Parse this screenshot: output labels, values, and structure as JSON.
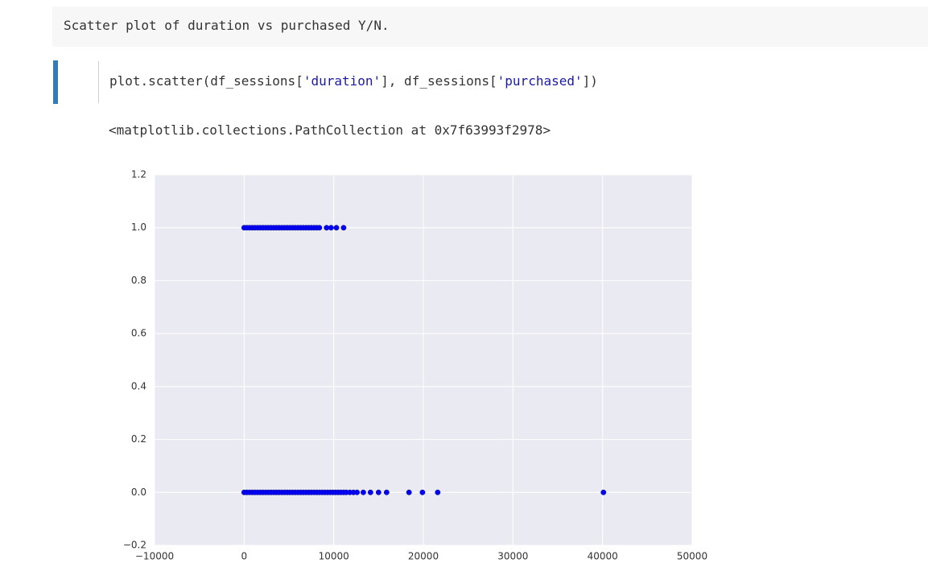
{
  "markdown": {
    "text": "Scatter plot of duration vs purchased Y/N."
  },
  "code": {
    "tokens": [
      "plot.scatter(df_sessions[",
      "'duration'",
      "], df_sessions[",
      "'purchased'",
      "])"
    ]
  },
  "output": {
    "text": "<matplotlib.collections.PathCollection at 0x7f63993f2978>"
  },
  "chart_data": {
    "type": "scatter",
    "color": "#0000ff",
    "grid": true,
    "x": [
      0,
      300,
      600,
      900,
      1200,
      1500,
      1800,
      2100,
      2400,
      2700,
      3000,
      3300,
      3600,
      3900,
      4200,
      4500,
      4800,
      5100,
      5400,
      5700,
      6000,
      6300,
      6600,
      6900,
      7200,
      7500,
      7800,
      8100,
      8400,
      9200,
      9700,
      10300,
      11100,
      0,
      300,
      600,
      900,
      1200,
      1500,
      1800,
      2100,
      2400,
      2700,
      3000,
      3300,
      3600,
      3900,
      4200,
      4500,
      4800,
      5100,
      5400,
      5700,
      6000,
      6300,
      6600,
      6900,
      7200,
      7500,
      7800,
      8100,
      8400,
      8700,
      9000,
      9300,
      9600,
      9900,
      10200,
      10500,
      10800,
      11100,
      11400,
      11800,
      12200,
      12600,
      13300,
      14100,
      15000,
      15900,
      18400,
      19900,
      21600,
      40100
    ],
    "y": [
      1,
      1,
      1,
      1,
      1,
      1,
      1,
      1,
      1,
      1,
      1,
      1,
      1,
      1,
      1,
      1,
      1,
      1,
      1,
      1,
      1,
      1,
      1,
      1,
      1,
      1,
      1,
      1,
      1,
      1,
      1,
      1,
      1,
      0,
      0,
      0,
      0,
      0,
      0,
      0,
      0,
      0,
      0,
      0,
      0,
      0,
      0,
      0,
      0,
      0,
      0,
      0,
      0,
      0,
      0,
      0,
      0,
      0,
      0,
      0,
      0,
      0,
      0,
      0,
      0,
      0,
      0,
      0,
      0,
      0,
      0,
      0,
      0,
      0,
      0,
      0,
      0,
      0,
      0,
      0,
      0,
      0,
      0
    ],
    "xlim": [
      -10000,
      50000
    ],
    "xticks": [
      {
        "value": -10000,
        "label": "−10000"
      },
      0,
      10000,
      20000,
      30000,
      40000,
      50000
    ],
    "ylim": [
      -0.2,
      1.2
    ],
    "yticks": [
      {
        "value": -0.2,
        "label": "−0.2"
      },
      {
        "value": 0,
        "label": "0.0"
      },
      0.2,
      0.4,
      0.6,
      0.8,
      {
        "value": 1,
        "label": "1.0"
      },
      1.2
    ]
  }
}
